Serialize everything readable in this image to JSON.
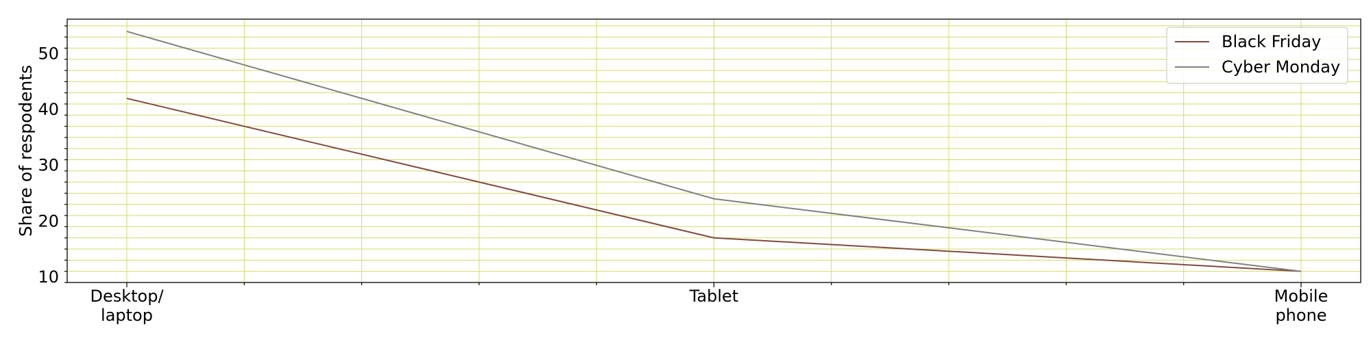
{
  "chart_data": {
    "type": "line",
    "categories": [
      [
        "Desktop/",
        "laptop"
      ],
      [
        "Tablet"
      ],
      [
        "Mobile",
        "phone"
      ]
    ],
    "series": [
      {
        "name": "Black Friday",
        "values": [
          42,
          17,
          11
        ],
        "color": "#7f4a3f"
      },
      {
        "name": "Cyber Monday",
        "values": [
          54,
          24,
          11
        ],
        "color": "#808080"
      }
    ],
    "title": "",
    "xlabel": "",
    "ylabel": "Share of respodents",
    "ylim": [
      9.0,
      56.2
    ],
    "yticks": [
      10,
      20,
      30,
      40,
      50
    ],
    "grid": true,
    "grid_color": "#d4d96a",
    "legend_position": "top-right"
  }
}
